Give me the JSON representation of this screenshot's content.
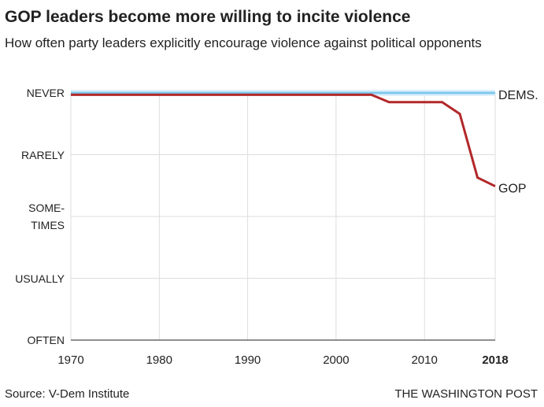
{
  "chart_data": {
    "type": "line",
    "title": "GOP leaders become more willing to incite violence",
    "subtitle": "How often party leaders explicitly encourage violence against political opponents",
    "source": "Source: V-Dem Institute",
    "credit": "THE WASHINGTON POST",
    "x": [
      1970,
      2004,
      2006,
      2012,
      2014,
      2016,
      2018
    ],
    "series": [
      {
        "name": "DEMS.",
        "color": "#7ec8ee",
        "values": [
          4,
          4,
          4,
          4,
          4,
          4,
          4
        ]
      },
      {
        "name": "GOP",
        "color": "#b2282a",
        "values": [
          3.97,
          3.97,
          3.85,
          3.85,
          3.66,
          2.63,
          2.49
        ]
      }
    ],
    "xlim": [
      1970,
      2018
    ],
    "xticks": [
      1970,
      1980,
      1990,
      2000,
      2010,
      2018
    ],
    "ylim": [
      0,
      4
    ],
    "yticks": [
      {
        "value": 0,
        "label": "OFTEN"
      },
      {
        "value": 1,
        "label": "USUALLY"
      },
      {
        "value": 2,
        "label": "SOME-\nTIMES"
      },
      {
        "value": 3,
        "label": "RARELY"
      },
      {
        "value": 4,
        "label": "NEVER"
      }
    ],
    "grid": true
  }
}
